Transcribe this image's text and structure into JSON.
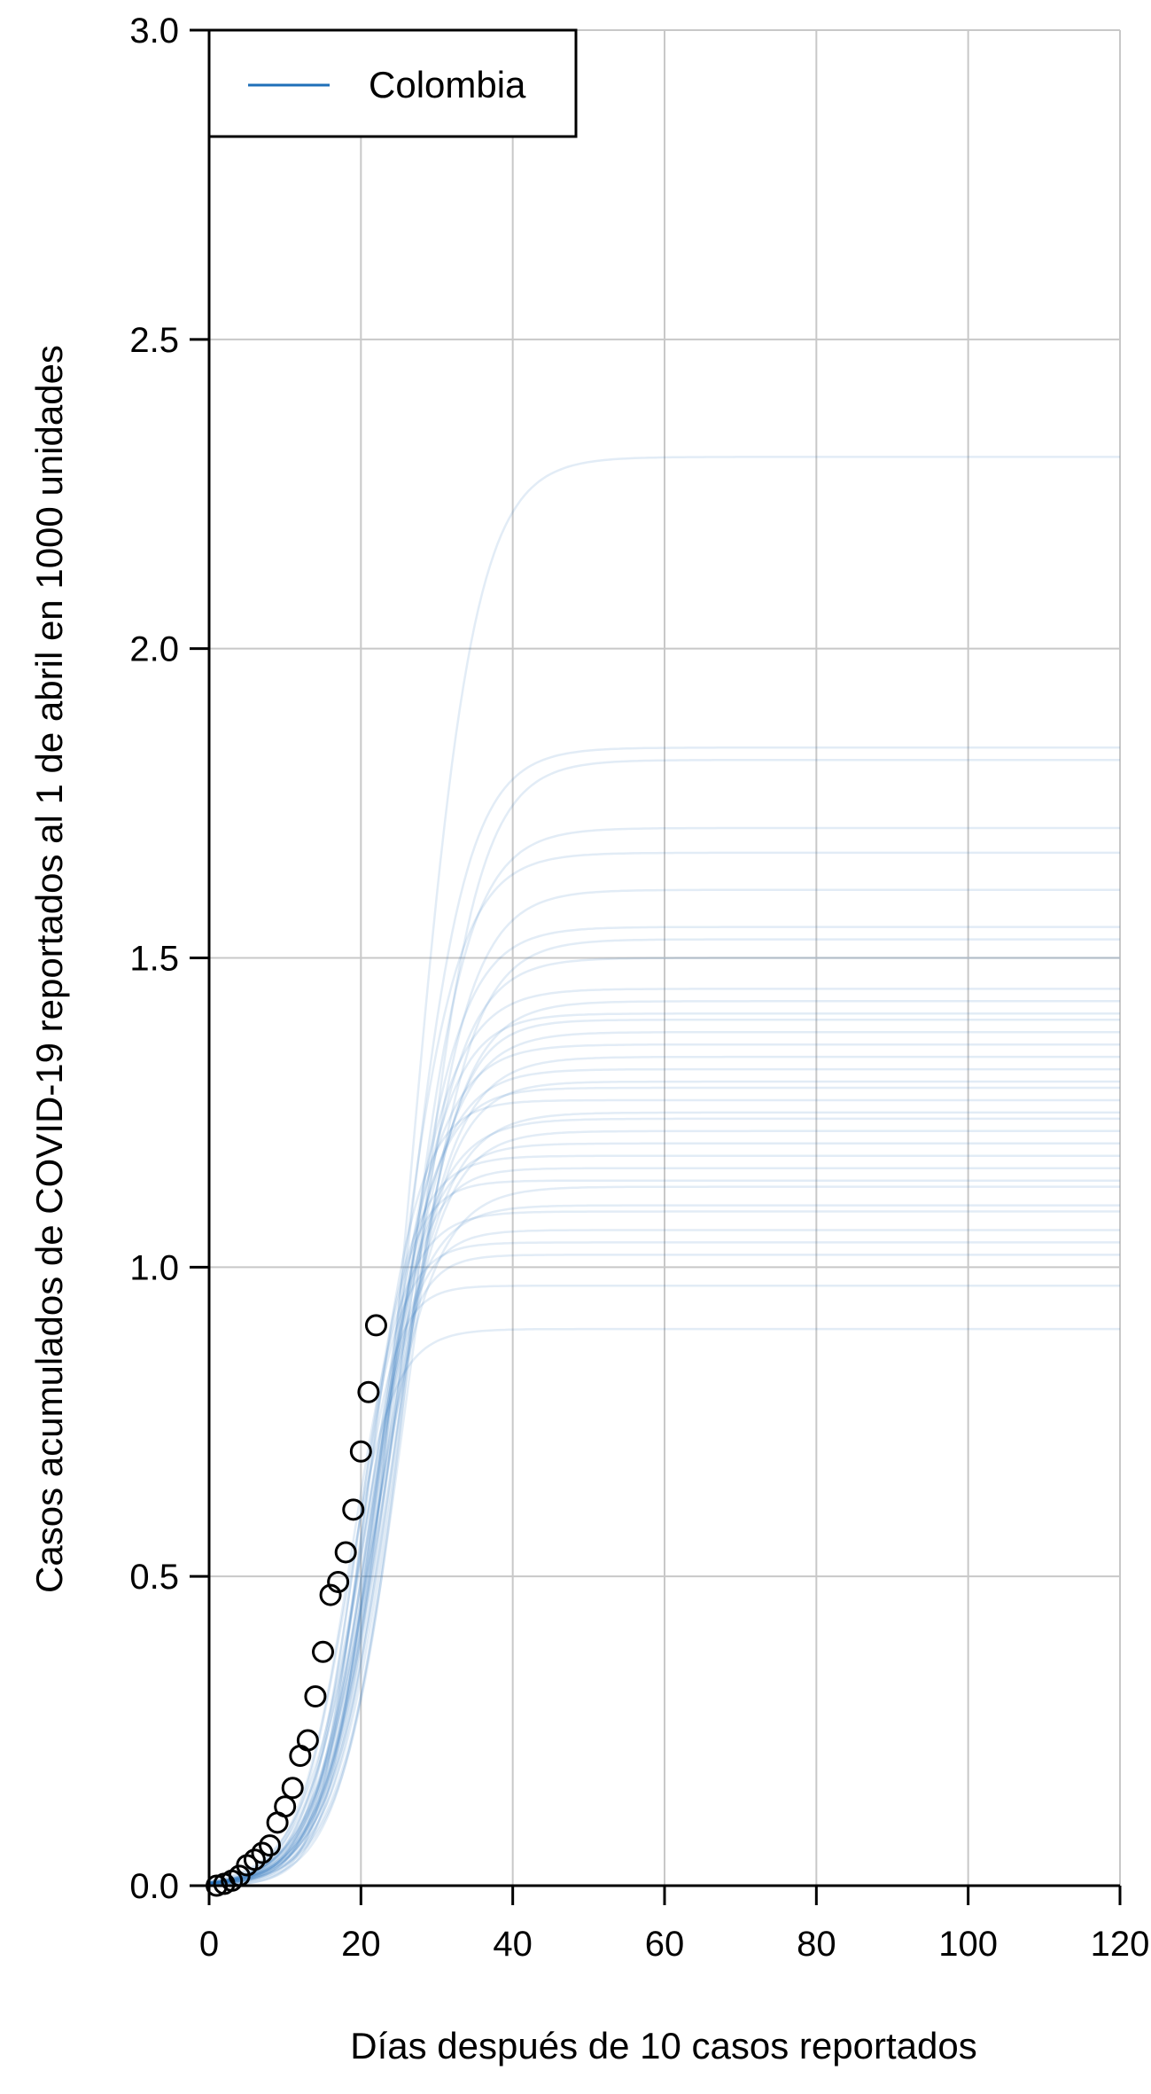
{
  "chart_data": {
    "type": "line",
    "title": "",
    "xlabel": "Días después de 10 casos reportados",
    "ylabel": "Casos acumulados de COVID-19 reportados al 1 de abril en 1000 unidades",
    "xlim": [
      0,
      120
    ],
    "ylim": [
      0,
      3
    ],
    "x_ticks": [
      "0",
      "20",
      "40",
      "60",
      "80",
      "100",
      "120"
    ],
    "y_ticks": [
      "0.0",
      "0.5",
      "1.0",
      "1.5",
      "2.0",
      "2.5",
      "3.0"
    ],
    "grid": true,
    "legend_position": "top-left",
    "colors": {
      "series": "#1f6fb8",
      "simulation": "#1f6fb8",
      "grid": "#c8c8c8",
      "axis": "#000000",
      "points": "#000000"
    },
    "series": [
      {
        "name": "Colombia",
        "kind": "simulated curves",
        "shown_in_legend": true
      }
    ],
    "simulation_plateaus": [
      0.9,
      0.97,
      1.02,
      1.04,
      1.06,
      1.09,
      1.1,
      1.13,
      1.14,
      1.16,
      1.18,
      1.2,
      1.22,
      1.24,
      1.25,
      1.27,
      1.29,
      1.3,
      1.32,
      1.34,
      1.36,
      1.38,
      1.4,
      1.41,
      1.43,
      1.45,
      1.5,
      1.53,
      1.55,
      1.61,
      1.67,
      1.71,
      1.82,
      1.84,
      2.31
    ],
    "observed": {
      "x": [
        1,
        2,
        3,
        4,
        5,
        6,
        7,
        8,
        9,
        10,
        11,
        12,
        13,
        14,
        15,
        16,
        17,
        18,
        19,
        20,
        21,
        22
      ],
      "y": [
        0.0,
        0.003,
        0.008,
        0.016,
        0.033,
        0.042,
        0.053,
        0.065,
        0.102,
        0.128,
        0.158,
        0.21,
        0.235,
        0.306,
        0.378,
        0.47,
        0.491,
        0.539,
        0.608,
        0.702,
        0.798,
        0.906
      ]
    }
  }
}
